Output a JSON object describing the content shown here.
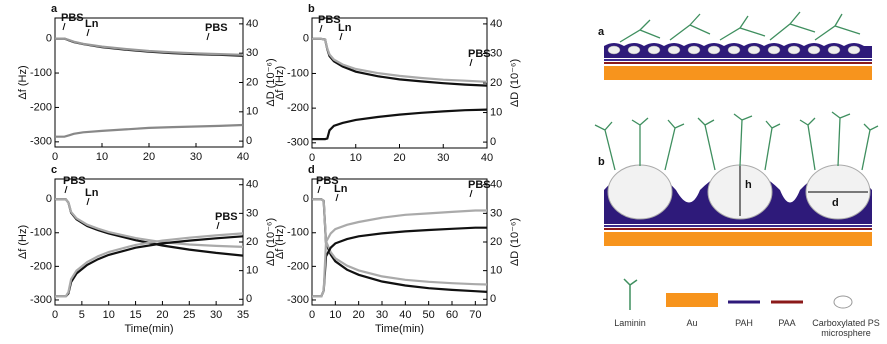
{
  "chart_data": [
    {
      "type": "line",
      "panel_label": "a",
      "y_label": "Δf (Hz)",
      "y2_label": "ΔD (10⁻⁶)",
      "annotations": [
        "PBS",
        "Ln",
        "PBS"
      ],
      "x": [
        0,
        2,
        3,
        4,
        6,
        10,
        15,
        20,
        25,
        30,
        35,
        40
      ],
      "series": [
        {
          "color": "#111111",
          "values": [
            0,
            0,
            -5,
            -10,
            -16,
            -25,
            -32,
            -38,
            -42,
            -45,
            -47,
            -50
          ]
        },
        {
          "color": "#999999",
          "values": [
            0,
            0,
            -4,
            -9,
            -15,
            -23,
            -30,
            -36,
            -40,
            -43,
            -45,
            -47
          ]
        },
        {
          "color": "#888888",
          "axis": "y2",
          "values": [
            1.5,
            1.5,
            2,
            2.5,
            3,
            3.5,
            4,
            4.5,
            4.8,
            5,
            5.2,
            5.5
          ]
        }
      ],
      "xlim": [
        0,
        40
      ],
      "xticks": [
        0,
        10,
        20,
        30,
        40
      ],
      "ylim": [
        -315,
        60
      ],
      "yticks": [
        -300,
        -200,
        -100,
        0
      ],
      "y2lim": [
        -2,
        42
      ],
      "y2ticks": [
        0,
        10,
        20,
        30,
        40
      ]
    },
    {
      "type": "line",
      "panel_label": "b",
      "y_label": "Δf (Hz)",
      "y2_label": "ΔD (10⁻⁶)",
      "annotations": [
        "PBS",
        "Ln",
        "PBS"
      ],
      "x": [
        0,
        2,
        3,
        3.5,
        4,
        5,
        7,
        10,
        15,
        20,
        25,
        30,
        35,
        40
      ],
      "series": [
        {
          "color": "#111111",
          "values": [
            0,
            0,
            -2,
            -30,
            -50,
            -65,
            -80,
            -95,
            -108,
            -117,
            -123,
            -128,
            -132,
            -135
          ]
        },
        {
          "color": "#aaaaaa",
          "values": [
            0,
            0,
            -2,
            -28,
            -45,
            -60,
            -74,
            -87,
            -99,
            -107,
            -113,
            -118,
            -121,
            -124
          ]
        },
        {
          "color": "#111111",
          "axis": "y2",
          "values": [
            1,
            1,
            1,
            1.2,
            4,
            5.5,
            6.5,
            7.5,
            8.5,
            9.3,
            9.9,
            10.4,
            10.8,
            11
          ]
        }
      ],
      "xlim": [
        0,
        40
      ],
      "xticks": [
        0,
        10,
        20,
        30,
        40
      ],
      "ylim": [
        -315,
        60
      ],
      "yticks": [
        -300,
        -200,
        -100,
        0
      ],
      "y2lim": [
        -2,
        42
      ],
      "y2ticks": [
        0,
        10,
        20,
        30,
        40
      ]
    },
    {
      "type": "line",
      "panel_label": "c",
      "y_label": "Δf (Hz)",
      "y2_label": "ΔD (10⁻⁶)",
      "x_label": "Time(min)",
      "annotations": [
        "PBS",
        "Ln",
        "PBS"
      ],
      "x": [
        0,
        2,
        2.5,
        3,
        4,
        6,
        8,
        10,
        15,
        20,
        25,
        30,
        35
      ],
      "series": [
        {
          "color": "#111111",
          "values": [
            0,
            0,
            -10,
            -40,
            -60,
            -80,
            -92,
            -102,
            -122,
            -138,
            -150,
            -160,
            -168
          ]
        },
        {
          "color": "#aaaaaa",
          "values": [
            0,
            0,
            -10,
            -38,
            -57,
            -76,
            -88,
            -98,
            -116,
            -128,
            -135,
            -139,
            -142
          ]
        },
        {
          "color": "#111111",
          "axis": "y2",
          "values": [
            1,
            1,
            2,
            6,
            9,
            12,
            14,
            15.5,
            18,
            19.5,
            20.5,
            21.3,
            22
          ]
        },
        {
          "color": "#aaaaaa",
          "axis": "y2",
          "values": [
            1,
            1,
            2.5,
            7,
            10,
            13,
            15,
            16.5,
            19,
            20.5,
            21.5,
            22.3,
            23
          ]
        }
      ],
      "xlim": [
        0,
        35
      ],
      "xticks": [
        0,
        5,
        10,
        15,
        20,
        25,
        30,
        35
      ],
      "ylim": [
        -315,
        60
      ],
      "yticks": [
        -300,
        -200,
        -100,
        0
      ],
      "y2lim": [
        -2,
        42
      ],
      "y2ticks": [
        0,
        10,
        20,
        30,
        40
      ]
    },
    {
      "type": "line",
      "panel_label": "d",
      "y_label": "Δf (Hz)",
      "y2_label": "ΔD (10⁻⁶)",
      "x_label": "Time(min)",
      "annotations": [
        "PBS",
        "Ln",
        "PBS"
      ],
      "x": [
        0,
        4,
        5,
        6,
        8,
        10,
        15,
        20,
        30,
        40,
        50,
        60,
        70,
        75
      ],
      "series": [
        {
          "color": "#111111",
          "values": [
            0,
            0,
            -5,
            -130,
            -165,
            -185,
            -210,
            -225,
            -245,
            -257,
            -265,
            -270,
            -274,
            -276
          ]
        },
        {
          "color": "#aaaaaa",
          "values": [
            0,
            0,
            -5,
            -125,
            -158,
            -176,
            -198,
            -212,
            -230,
            -240,
            -246,
            -250,
            -253,
            -254
          ]
        },
        {
          "color": "#111111",
          "axis": "y2",
          "values": [
            1,
            1,
            3,
            15,
            18,
            19.5,
            21,
            22,
            23,
            23.7,
            24.2,
            24.6,
            25,
            25
          ]
        },
        {
          "color": "#aaaaaa",
          "axis": "y2",
          "values": [
            1,
            1,
            3,
            20,
            23,
            24.5,
            26,
            27,
            28.5,
            29.5,
            30,
            30.5,
            31,
            31
          ]
        }
      ],
      "xlim": [
        0,
        75
      ],
      "xticks": [
        0,
        10,
        20,
        30,
        40,
        50,
        60,
        70
      ],
      "ylim": [
        -315,
        60
      ],
      "yticks": [
        -300,
        -200,
        -100,
        0
      ],
      "y2lim": [
        -2,
        42
      ],
      "y2ticks": [
        0,
        10,
        20,
        30,
        40
      ]
    }
  ],
  "schematic": {
    "panels": [
      "a",
      "b"
    ],
    "dimensions": [
      "h",
      "d"
    ],
    "legend": [
      "Laminin",
      "Au",
      "PAH",
      "PAA",
      "Carboxylated PS microsphere"
    ]
  }
}
